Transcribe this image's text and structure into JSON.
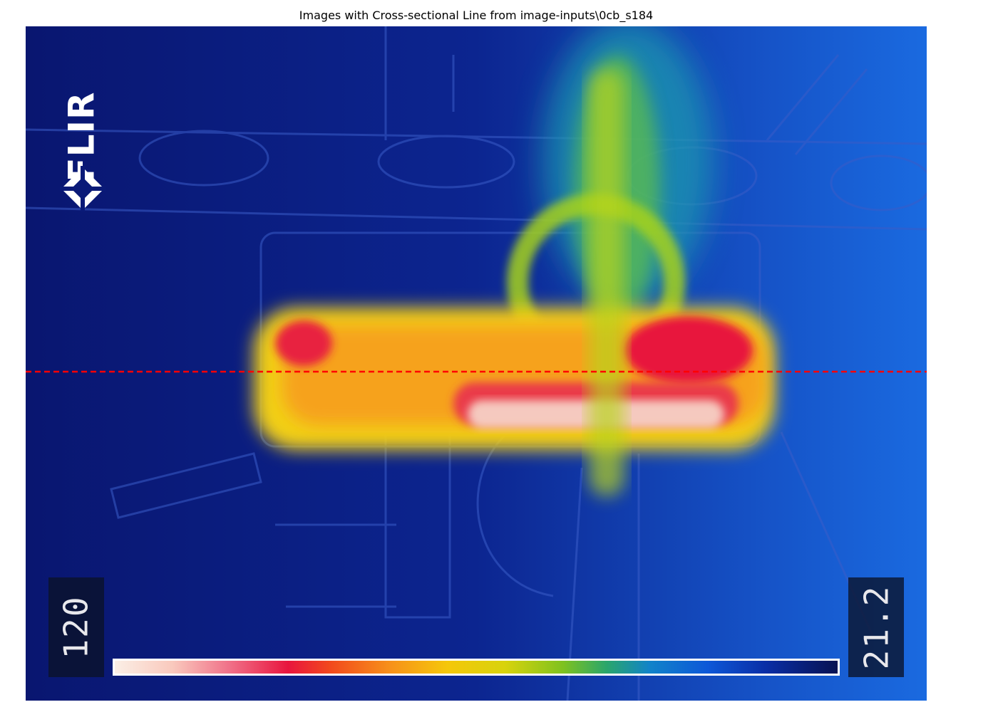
{
  "figure": {
    "title": "Images with Cross-sectional Line from image-inputs\\0cb_s184"
  },
  "thermal_image": {
    "brand_text": "FLIR",
    "brand_icon": "flir-diamond-icon",
    "max_temperature": "120",
    "min_temperature": "21.2",
    "palette": "iron-rainbow",
    "cross_section_color": "#ff0000",
    "colors": {
      "background": "#0a1a78",
      "hot": "#e8153e",
      "warm": "#f5c70a",
      "mid": "#7fc21f",
      "cool": "#1183c9"
    }
  }
}
